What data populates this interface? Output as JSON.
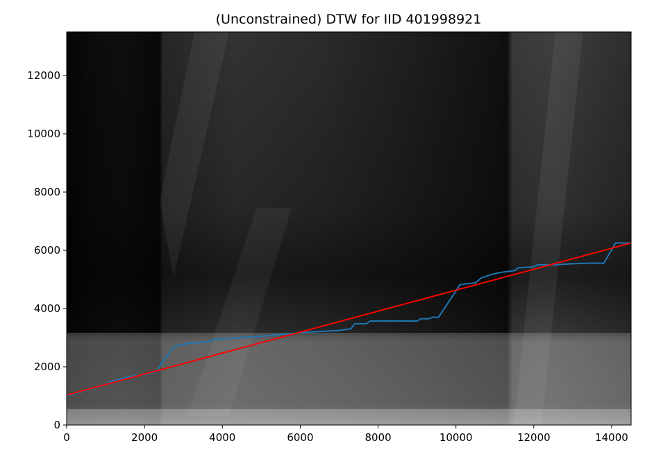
{
  "chart_data": {
    "type": "heatmap",
    "title": "(Unconstrained) DTW for IID 401998921",
    "xlabel": "",
    "ylabel": "",
    "xlim": [
      0,
      14500
    ],
    "ylim": [
      0,
      13500
    ],
    "x_ticks": [
      0,
      2000,
      4000,
      6000,
      8000,
      10000,
      12000,
      14000
    ],
    "x_tick_labels": [
      "0",
      "2000",
      "4000",
      "6000",
      "8000",
      "10000",
      "12000",
      "14000"
    ],
    "y_ticks": [
      0,
      2000,
      4000,
      6000,
      8000,
      10000,
      12000
    ],
    "y_tick_labels": [
      "0",
      "2000",
      "4000",
      "6000",
      "8000",
      "10000",
      "12000"
    ],
    "colormap": "gray",
    "grid": false,
    "series": [
      {
        "type": "line",
        "color": "#1f77b4",
        "x": [
          0,
          1000,
          1100,
          1600,
          2000,
          2300,
          2400,
          2750,
          2900,
          3100,
          3600,
          3800,
          5000,
          6000,
          7000,
          7300,
          7400,
          7700,
          7800,
          8200,
          9000,
          9100,
          9300,
          9400,
          9550,
          9800,
          10000,
          10100,
          10500,
          10650,
          10800,
          11000,
          11200,
          11500,
          11600,
          12000,
          12100,
          12500,
          13000,
          13500,
          13800,
          14100,
          14500
        ],
        "y": [
          1000,
          1380,
          1480,
          1660,
          1730,
          1830,
          2050,
          2680,
          2750,
          2800,
          2850,
          2940,
          3050,
          3170,
          3250,
          3300,
          3480,
          3480,
          3570,
          3570,
          3570,
          3650,
          3650,
          3700,
          3700,
          4200,
          4600,
          4820,
          4880,
          5050,
          5120,
          5200,
          5250,
          5300,
          5400,
          5430,
          5500,
          5500,
          5540,
          5560,
          5560,
          6250,
          6250
        ]
      },
      {
        "type": "line",
        "color": "#ff0000",
        "x": [
          0,
          14500
        ],
        "y": [
          1030,
          6250
        ]
      }
    ]
  }
}
